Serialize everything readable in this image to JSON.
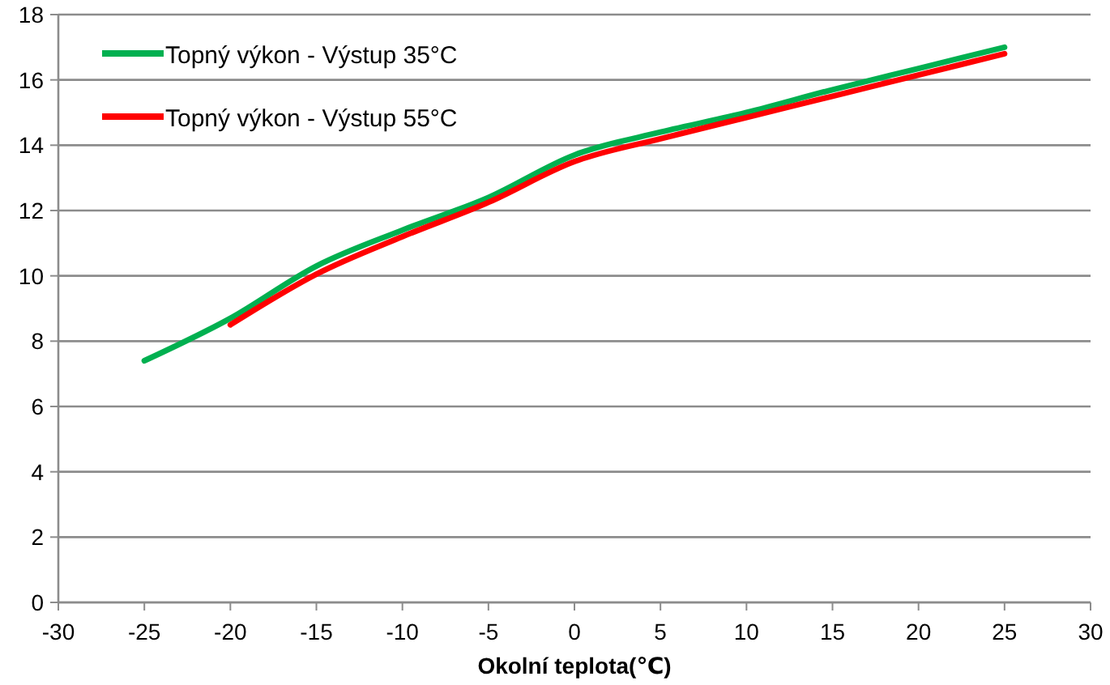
{
  "chart_data": {
    "type": "line",
    "xlabel": "Okolní teplota(℃)",
    "x": [
      -25,
      -20,
      -15,
      -10,
      -5,
      0,
      5,
      10,
      15,
      20,
      25
    ],
    "series": [
      {
        "name": "Topný výkon - Výstup 35°C",
        "color": "#00b050",
        "values": [
          7.4,
          8.7,
          10.3,
          11.4,
          12.4,
          13.7,
          14.4,
          15.0,
          15.7,
          16.35,
          17.0
        ]
      },
      {
        "name": "Topný výkon - Výstup 55°C",
        "color": "#ff0000",
        "values": [
          null,
          8.5,
          10.05,
          11.2,
          12.25,
          13.5,
          14.2,
          14.85,
          15.5,
          16.15,
          16.8
        ]
      }
    ],
    "xlim": [
      -30,
      30
    ],
    "xticks": [
      -30,
      -25,
      -20,
      -15,
      -10,
      -5,
      0,
      5,
      10,
      15,
      20,
      25,
      30
    ],
    "ylim": [
      0,
      18
    ],
    "yticks": [
      0,
      2,
      4,
      6,
      8,
      10,
      12,
      14,
      16,
      18
    ],
    "grid": "y",
    "legend": "top left",
    "marker": "none",
    "line_style": "solid"
  }
}
